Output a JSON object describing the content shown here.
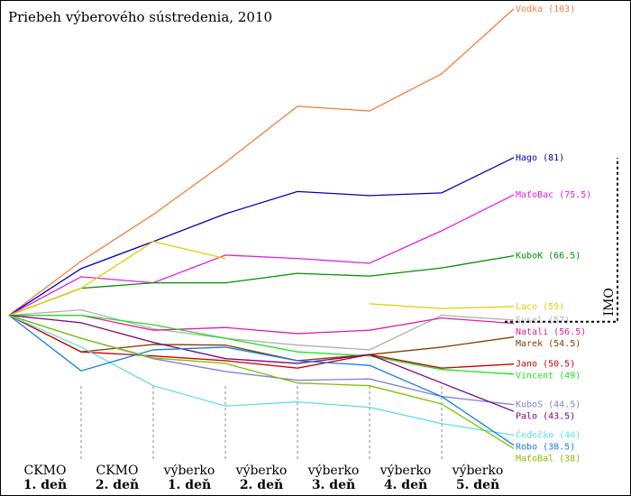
{
  "chart_data": {
    "type": "line",
    "title": "Priebeh výberového sústredenia, 2010",
    "categories": [
      null,
      [
        "CKMO",
        "1. deň"
      ],
      [
        "CKMO",
        "2. deň"
      ],
      [
        "výberko",
        "1. deň"
      ],
      [
        "výberko",
        "2. deň"
      ],
      [
        "výberko",
        "3. deň"
      ],
      [
        "výberko",
        "4. deň"
      ],
      [
        "výberko",
        "5. deň"
      ]
    ],
    "ylim": [
      31,
      104.3
    ],
    "annotation": {
      "text": "IMO",
      "value": 56.75
    },
    "series": [
      {
        "name": "Vodka (103)",
        "color": "#f08040",
        "values": [
          57.7,
          65.7,
          72.6,
          80.3,
          88.6,
          87.9,
          93.4,
          103
        ]
      },
      {
        "name": "Hago (81)",
        "color": "#0000c0",
        "values": [
          57.7,
          64.6,
          68.6,
          72.7,
          76.0,
          75.4,
          75.8,
          81
        ]
      },
      {
        "name": "MaťoBac (75.5)",
        "color": "#e020e0",
        "values": [
          57.7,
          63.4,
          62.5,
          66.6,
          66.1,
          65.4,
          70.2,
          75.5
        ]
      },
      {
        "name": "KuboK (66.5)",
        "color": "#009000",
        "values": [
          57.7,
          61.7,
          62.5,
          62.5,
          63.9,
          63.5,
          64.7,
          66.5
        ]
      },
      {
        "name": "Laco (59)",
        "color": "#e0d000",
        "values": [
          57.7,
          61.7,
          68.6,
          66.1,
          null,
          59.4,
          58.7,
          59
        ]
      },
      {
        "name": "Sysel (57)",
        "color": "#b0b0b0",
        "values": [
          57.7,
          58.5,
          55.7,
          54.3,
          53.3,
          52.6,
          57.7,
          57
        ]
      },
      {
        "name": "Natali (56.5)",
        "color": "#e020a0",
        "values": [
          57.7,
          57.7,
          55.5,
          55.9,
          55.0,
          55.5,
          57.3,
          56.5
        ]
      },
      {
        "name": "Marek (54.5)",
        "color": "#804000",
        "values": [
          57.7,
          52.3,
          53.4,
          53.3,
          51.0,
          51.9,
          53.0,
          54.5
        ]
      },
      {
        "name": "Jano (50.5)",
        "color": "#d00000",
        "values": [
          57.7,
          52.3,
          51.7,
          51.0,
          49.9,
          51.9,
          49.9,
          50.5
        ]
      },
      {
        "name": "Vincent (49)",
        "color": "#20e020",
        "values": [
          57.7,
          57.7,
          56.3,
          54.3,
          52.3,
          51.7,
          49.7,
          49
        ]
      },
      {
        "name": "KuboS (44.5)",
        "color": "#8080e0",
        "values": [
          57.7,
          54.3,
          51.3,
          49.4,
          48.1,
          48.3,
          45.7,
          44.5
        ]
      },
      {
        "name": "Palo (43.5)",
        "color": "#800080",
        "values": [
          57.7,
          56.6,
          53.7,
          51.3,
          50.6,
          51.9,
          47.7,
          43.5
        ]
      },
      {
        "name": "Čeďečko (40)",
        "color": "#60e0e0",
        "values": [
          57.7,
          53.0,
          47.3,
          44.3,
          44.9,
          44.1,
          41.7,
          40
        ]
      },
      {
        "name": "Robo (38.5)",
        "color": "#1080e0",
        "values": [
          57.7,
          49.5,
          52.6,
          53.0,
          51.0,
          50.3,
          45.7,
          38.5
        ]
      },
      {
        "name": "MaťoBal (38)",
        "color": "#80c000",
        "values": [
          57.7,
          54.3,
          51.4,
          50.6,
          47.7,
          47.3,
          44.6,
          38
        ]
      }
    ]
  }
}
